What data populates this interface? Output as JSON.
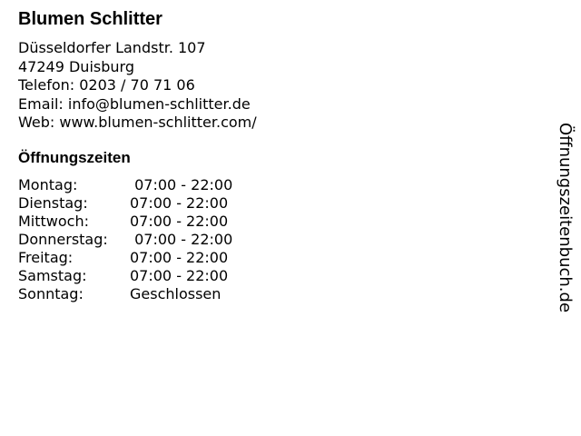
{
  "business": {
    "name": "Blumen Schlitter",
    "street": "Düsseldorfer Landstr. 107",
    "city": "47249 Duisburg",
    "phone": "Telefon: 0203 / 70 71 06",
    "email": "Email: info@blumen-schlitter.de",
    "web": "Web: www.blumen-schlitter.com/"
  },
  "hours": {
    "title": "Öffnungszeiten",
    "rows": [
      {
        "day": "Montag:",
        "time": " 07:00 - 22:00"
      },
      {
        "day": "Dienstag:",
        "time": "07:00 - 22:00"
      },
      {
        "day": "Mittwoch:",
        "time": "07:00 - 22:00"
      },
      {
        "day": "Donnerstag:",
        "time": " 07:00 - 22:00"
      },
      {
        "day": "Freitag:",
        "time": "07:00 - 22:00"
      },
      {
        "day": "Samstag:",
        "time": "07:00 - 22:00"
      },
      {
        "day": "Sonntag:",
        "time": "Geschlossen"
      }
    ]
  },
  "branding": {
    "site": "Öffnungszeitenbuch.de"
  }
}
